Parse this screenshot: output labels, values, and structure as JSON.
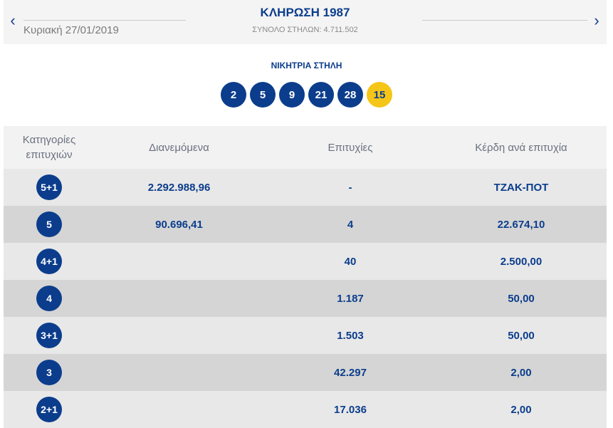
{
  "header": {
    "title": "ΚΛΗΡΩΣΗ 1987",
    "subtitle": "ΣΥΝΟΛΟ ΣΤΗΛΩΝ: 4.711.502",
    "date": "Κυριακή 27/01/2019",
    "prev_icon": "chevron-left",
    "next_icon": "chevron-right"
  },
  "winning": {
    "label": "ΝΙΚΗΤΡΙΑ ΣΤΗΛΗ",
    "numbers": [
      "2",
      "5",
      "9",
      "21",
      "28"
    ],
    "joker": "15"
  },
  "table": {
    "headers": {
      "category": "Κατηγορίες επιτυχιών",
      "distributed": "Διανεμόμενα",
      "winners": "Επιτυχίες",
      "prize": "Κέρδη ανά επιτυχία"
    },
    "rows": [
      {
        "category": "5+1",
        "distributed": "2.292.988,96",
        "winners": "-",
        "prize": "ΤΖΑΚ-ΠΟΤ"
      },
      {
        "category": "5",
        "distributed": "90.696,41",
        "winners": "4",
        "prize": "22.674,10"
      },
      {
        "category": "4+1",
        "distributed": "",
        "winners": "40",
        "prize": "2.500,00"
      },
      {
        "category": "4",
        "distributed": "",
        "winners": "1.187",
        "prize": "50,00"
      },
      {
        "category": "3+1",
        "distributed": "",
        "winners": "1.503",
        "prize": "50,00"
      },
      {
        "category": "3",
        "distributed": "",
        "winners": "42.297",
        "prize": "2,00"
      },
      {
        "category": "2+1",
        "distributed": "",
        "winners": "17.036",
        "prize": "2,00"
      }
    ]
  },
  "colors": {
    "primary": "#0b3d8c",
    "joker": "#f5c518"
  }
}
